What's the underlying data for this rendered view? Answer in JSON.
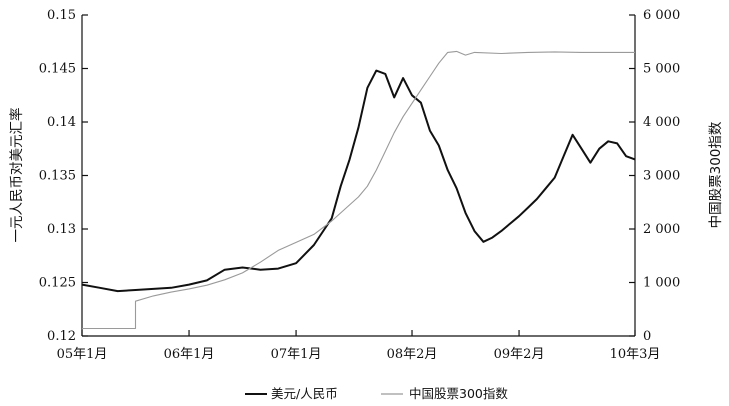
{
  "chart_data": {
    "type": "line",
    "title": "",
    "xlabel": "",
    "y_left_label": "一元人民币对美元汇率",
    "y_right_label": "中国股票300指数",
    "x_ticks": [
      "05年1月",
      "06年1月",
      "07年1月",
      "08年2月",
      "09年2月",
      "10年3月"
    ],
    "y_left_ticks": [
      "0.12",
      "0.125",
      "0.13",
      "0.135",
      "0.14",
      "0.145",
      "0.15"
    ],
    "y_right_ticks": [
      "0",
      "1 000",
      "2 000",
      "3 000",
      "4 000",
      "5 000",
      "6 000"
    ],
    "ylim_left": [
      0.12,
      0.15
    ],
    "ylim_right": [
      0,
      6000
    ],
    "legend_position": "bottom-center",
    "grid": false,
    "series": [
      {
        "name": "美元/人民币",
        "axis": "left",
        "color": "#111111",
        "x": [
          "2005-01",
          "2005-03",
          "2005-05",
          "2005-07",
          "2005-09",
          "2005-11",
          "2006-01",
          "2006-03",
          "2006-05",
          "2006-07",
          "2006-09",
          "2006-11",
          "2007-01",
          "2007-03",
          "2007-05",
          "2007-06",
          "2007-07",
          "2007-08",
          "2007-09",
          "2007-10",
          "2007-11",
          "2007-12",
          "2008-01",
          "2008-02",
          "2008-03",
          "2008-04",
          "2008-05",
          "2008-06",
          "2008-07",
          "2008-08",
          "2008-09",
          "2008-10",
          "2008-11",
          "2008-12",
          "2009-01",
          "2009-02",
          "2009-03",
          "2009-04",
          "2009-05",
          "2009-06",
          "2009-07",
          "2009-08",
          "2009-09",
          "2009-10",
          "2009-11",
          "2009-12",
          "2010-01",
          "2010-02",
          "2010-03"
        ],
        "y": [
          0.1248,
          0.1245,
          0.1242,
          0.1243,
          0.1244,
          0.1245,
          0.1248,
          0.1252,
          0.1262,
          0.1264,
          0.1262,
          0.1263,
          0.1268,
          0.1285,
          0.131,
          0.134,
          0.1365,
          0.1395,
          0.1432,
          0.1448,
          0.1445,
          0.1423,
          0.1441,
          0.1425,
          0.1418,
          0.1392,
          0.1378,
          0.1355,
          0.1338,
          0.1315,
          0.1298,
          0.1288,
          0.1292,
          0.1298,
          0.1305,
          0.1312,
          0.132,
          0.1328,
          0.1338,
          0.1348,
          0.1368,
          0.1388,
          0.1375,
          0.1362,
          0.1375,
          0.1382,
          0.138,
          0.1368,
          0.1365
        ]
      },
      {
        "name": "中国股票300指数",
        "axis": "right",
        "color": "#9a9a9a",
        "x": [
          "2005-01",
          "2005-03",
          "2005-05",
          "2005-06",
          "2005-07",
          "2005-09",
          "2005-11",
          "2006-01",
          "2006-03",
          "2006-05",
          "2006-07",
          "2006-09",
          "2006-11",
          "2007-01",
          "2007-03",
          "2007-05",
          "2007-07",
          "2007-08",
          "2007-09",
          "2007-10",
          "2007-11",
          "2007-12",
          "2008-01",
          "2008-02",
          "2008-03",
          "2008-04",
          "2008-05",
          "2008-06",
          "2008-07",
          "2008-08",
          "2008-09",
          "2008-12",
          "2009-03",
          "2009-06",
          "2009-09",
          "2009-12",
          "2010-03"
        ],
        "y": [
          140,
          140,
          140,
          140,
          650,
          750,
          820,
          880,
          950,
          1050,
          1180,
          1380,
          1600,
          1750,
          1900,
          2150,
          2450,
          2600,
          2800,
          3100,
          3450,
          3800,
          4100,
          4350,
          4600,
          4850,
          5100,
          5300,
          5320,
          5250,
          5300,
          5280,
          5300,
          5310,
          5300,
          5300,
          5300
        ]
      }
    ]
  }
}
